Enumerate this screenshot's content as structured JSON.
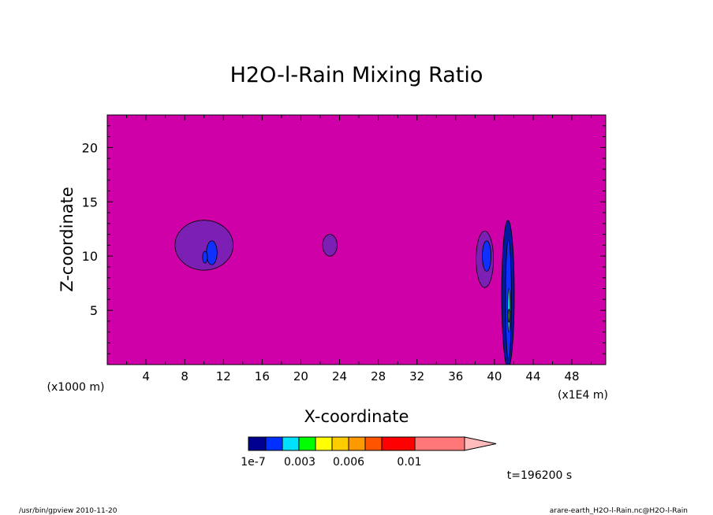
{
  "chart_data": {
    "type": "heatmap",
    "title": "H2O-l-Rain Mixing Ratio",
    "xlabel": "X-coordinate",
    "ylabel": "Z-coordinate",
    "x_offset_label": "(x1000 m)",
    "x_unit_label": "(x1E4 m)",
    "xlim": [
      0,
      51.5
    ],
    "ylim": [
      0,
      23
    ],
    "x_ticks": [
      4,
      8,
      12,
      16,
      20,
      24,
      28,
      32,
      36,
      40,
      44,
      48
    ],
    "y_ticks": [
      5,
      10,
      15,
      20
    ],
    "background_color": "#d000a8",
    "features": [
      {
        "kind": "blob",
        "cx": 10.0,
        "cy": 11.0,
        "rx": 3.0,
        "ry": 2.3,
        "color": "#7b1fb5"
      },
      {
        "kind": "blob",
        "cx": 10.8,
        "cy": 10.3,
        "rx": 0.55,
        "ry": 1.1,
        "color": "#1030ff"
      },
      {
        "kind": "blob",
        "cx": 10.1,
        "cy": 9.9,
        "rx": 0.25,
        "ry": 0.55,
        "color": "#1030ff"
      },
      {
        "kind": "blob",
        "cx": 23.0,
        "cy": 11.0,
        "rx": 0.75,
        "ry": 1.0,
        "color": "#7b1fb5"
      },
      {
        "kind": "blob",
        "cx": 39.0,
        "cy": 9.7,
        "rx": 0.9,
        "ry": 2.6,
        "color": "#7b1fb5"
      },
      {
        "kind": "blob",
        "cx": 39.2,
        "cy": 10.0,
        "rx": 0.45,
        "ry": 1.4,
        "color": "#1030ff"
      },
      {
        "kind": "blob",
        "cx": 41.4,
        "cy": 6.5,
        "rx": 0.65,
        "ry": 6.8,
        "color": "#001aa0"
      },
      {
        "kind": "blob",
        "cx": 41.45,
        "cy": 6.0,
        "rx": 0.3,
        "ry": 5.5,
        "color": "#1030ff"
      },
      {
        "kind": "blob",
        "cx": 41.5,
        "cy": 5.0,
        "rx": 0.12,
        "ry": 2.0,
        "color": "#00ffff"
      },
      {
        "kind": "blob",
        "cx": 41.5,
        "cy": 4.5,
        "rx": 0.08,
        "ry": 0.6,
        "color": "#00ff00"
      }
    ],
    "colorbar": {
      "colors": [
        "#000090",
        "#0030ff",
        "#00e0ff",
        "#00ff00",
        "#ffff00",
        "#ffcc00",
        "#ff9900",
        "#ff5500",
        "#ff0000",
        "#ff7777"
      ],
      "extend_color": "#ffbbbb",
      "labels": [
        "1e-7",
        "0.003",
        "0.006",
        "0.01"
      ]
    }
  },
  "time_label": "t=196200 s",
  "footer_left": "/usr/bin/gpview   2010-11-20",
  "footer_right": "arare-earth_H2O-l-Rain.nc@H2O-l-Rain"
}
